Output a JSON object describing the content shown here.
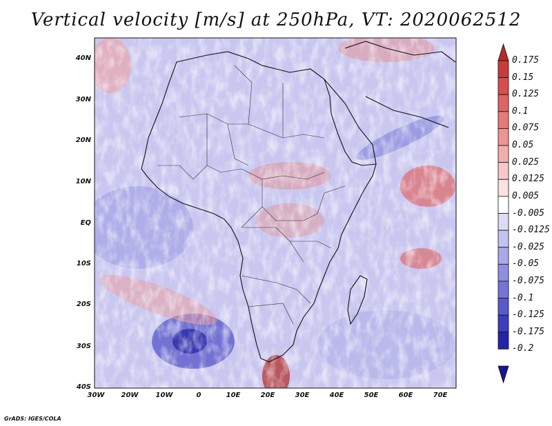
{
  "title": "Vertical velocity [m/s] at 250hPa, VT: 2020062512",
  "y_ticks": [
    "40N",
    "30N",
    "20N",
    "10N",
    "EQ",
    "10S",
    "20S",
    "30S",
    "40S"
  ],
  "x_ticks": [
    "30W",
    "20W",
    "10W",
    "0",
    "10E",
    "20E",
    "30E",
    "40E",
    "50E",
    "60E",
    "70E"
  ],
  "colorbar": {
    "levels": [
      "0.175",
      "0.15",
      "0.125",
      "0.1",
      "0.075",
      "0.05",
      "0.025",
      "0.0125",
      "0.005",
      "-0.005",
      "-0.0125",
      "-0.025",
      "-0.05",
      "-0.075",
      "-0.1",
      "-0.125",
      "-0.175",
      "-0.2"
    ],
    "colors": [
      "#b52a2a",
      "#c93b3b",
      "#d64f4f",
      "#e06464",
      "#e87a7a",
      "#ef9494",
      "#f4adad",
      "#f8c8c8",
      "#fbe2e2",
      "#ffffff",
      "#dcdcf8",
      "#c3c3f2",
      "#a9a9ea",
      "#8f8fe2",
      "#7575d8",
      "#5959cc",
      "#3d3dbe",
      "#2424a8",
      "#161690"
    ]
  },
  "credit": "GrADS: IGES/COLA"
}
